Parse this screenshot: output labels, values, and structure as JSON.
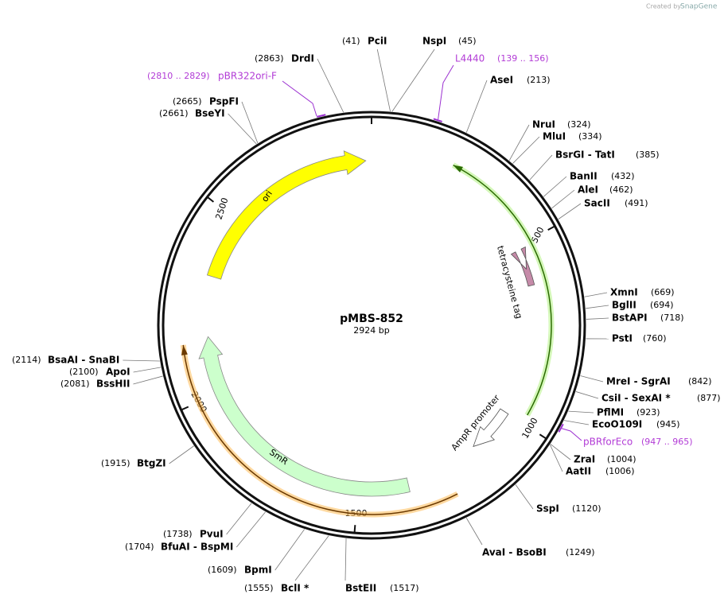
{
  "credit": {
    "created_by": "Created by",
    "brand": "SnapGene"
  },
  "plasmid": {
    "name": "pMBS-852",
    "length": "2924 bp"
  },
  "ticks": [
    "500",
    "1000",
    "1500",
    "2000",
    "2500"
  ],
  "features": [
    "ori",
    "tetracysteine tag",
    "AmpR promoter",
    "SmR"
  ],
  "primers": [
    {
      "name": "L4440",
      "range": "(139 .. 156)"
    },
    {
      "name": "pBR322ori-F",
      "range": "(2810 .. 2829)"
    },
    {
      "name": "pBRforEco",
      "range": "(947 .. 965)"
    }
  ],
  "sites": [
    {
      "name": "PciI",
      "position": "(41)"
    },
    {
      "name": "NspI",
      "position": "(45)"
    },
    {
      "name": "AseI",
      "position": "(213)"
    },
    {
      "name": "NruI",
      "position": "(324)"
    },
    {
      "name": "MluI",
      "position": "(334)"
    },
    {
      "name": "BsrGI - TatI",
      "position": "(385)"
    },
    {
      "name": "BanII",
      "position": "(432)"
    },
    {
      "name": "AleI",
      "position": "(462)"
    },
    {
      "name": "SacII",
      "position": "(491)"
    },
    {
      "name": "XmnI",
      "position": "(669)"
    },
    {
      "name": "BglII",
      "position": "(694)"
    },
    {
      "name": "BstAPI",
      "position": "(718)"
    },
    {
      "name": "PstI",
      "position": "(760)"
    },
    {
      "name": "MreI - SgrAI",
      "position": "(842)"
    },
    {
      "name": "CsiI - SexAI *",
      "position": "(877)"
    },
    {
      "name": "PflMI",
      "position": "(923)"
    },
    {
      "name": "EcoO109I",
      "position": "(945)"
    },
    {
      "name": "ZraI",
      "position": "(1004)"
    },
    {
      "name": "AatII",
      "position": "(1006)"
    },
    {
      "name": "SspI",
      "position": "(1120)"
    },
    {
      "name": "AvaI - BsoBI",
      "position": "(1249)"
    },
    {
      "name": "BstEII",
      "position": "(1517)"
    },
    {
      "name": "BclI *",
      "position": "(1555)"
    },
    {
      "name": "BpmI",
      "position": "(1609)"
    },
    {
      "name": "BfuAI - BspMI",
      "position": "(1704)"
    },
    {
      "name": "PvuI",
      "position": "(1738)"
    },
    {
      "name": "BtgZI",
      "position": "(1915)"
    },
    {
      "name": "BssHII",
      "position": "(2081)"
    },
    {
      "name": "ApoI",
      "position": "(2100)"
    },
    {
      "name": "BsaAI - SnaBI",
      "position": "(2114)"
    },
    {
      "name": "BseYI",
      "position": "(2661)"
    },
    {
      "name": "PspFI",
      "position": "(2665)"
    },
    {
      "name": "DrdI",
      "position": "(2863)"
    }
  ]
}
